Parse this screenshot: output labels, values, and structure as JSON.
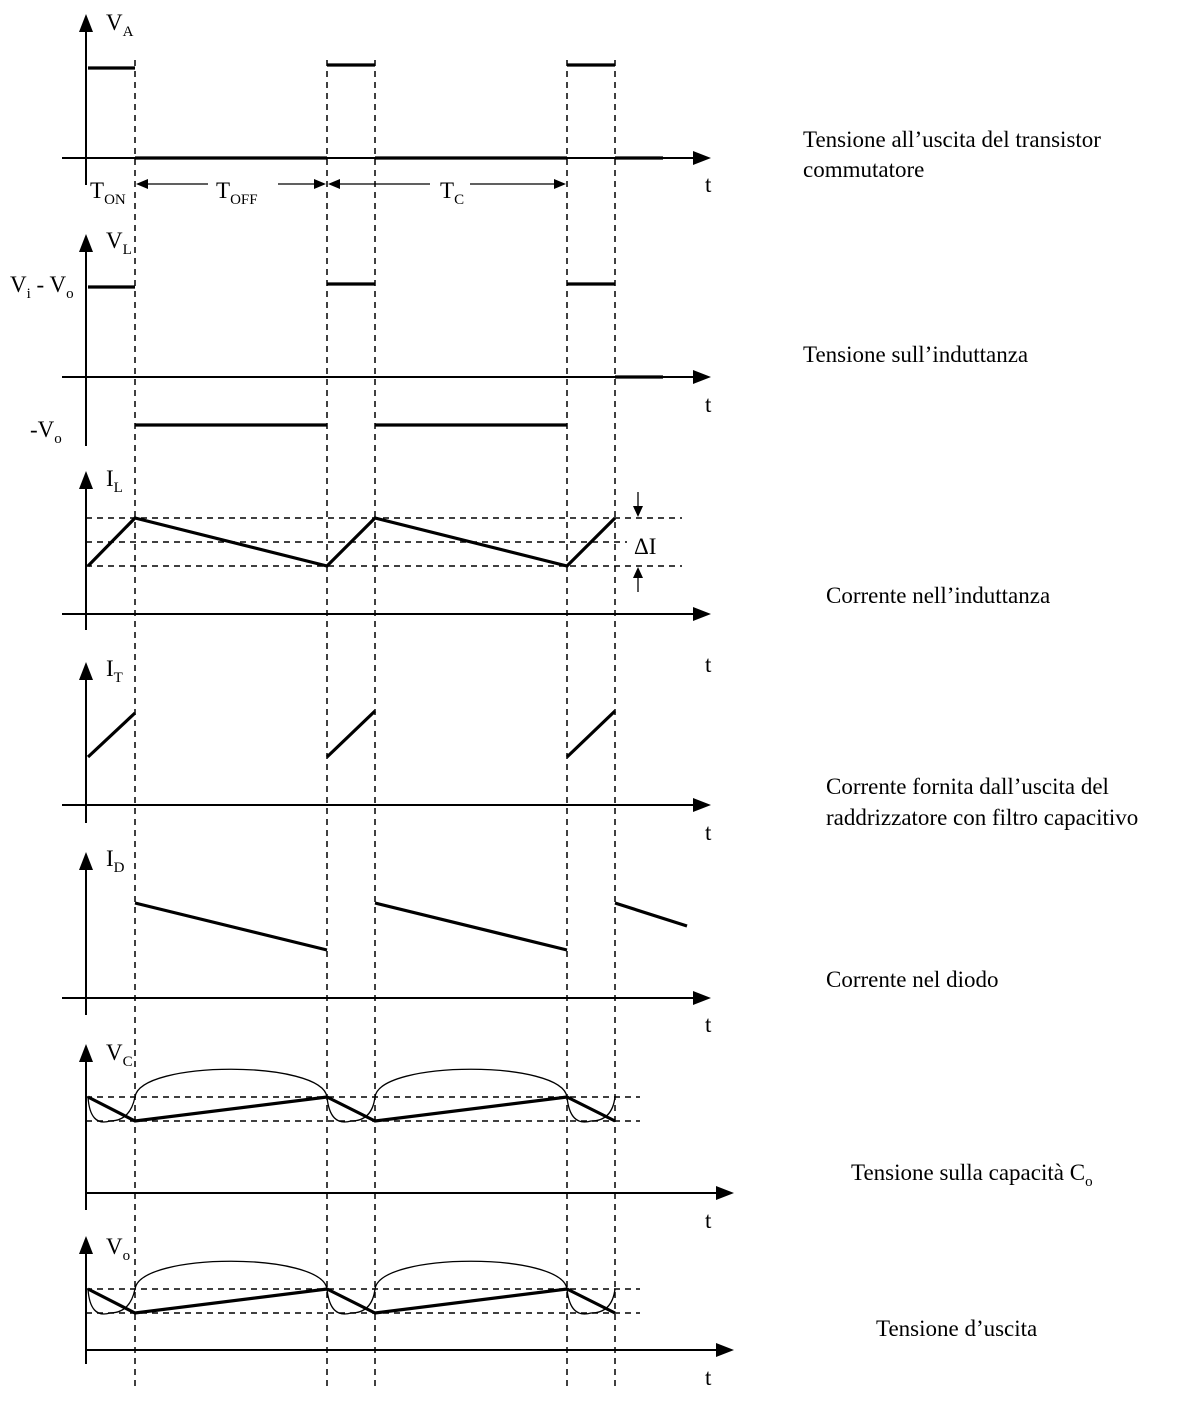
{
  "timing": {
    "t_on": "T",
    "t_on_sub": "ON",
    "t_off": "T",
    "t_off_sub": "OFF",
    "t_c": "T",
    "t_c_sub": "C"
  },
  "panels": {
    "va": {
      "y_label": "V",
      "y_sub": "A",
      "x_label": "t",
      "description": [
        "Tensione all’uscita del transistor",
        "commutatore"
      ]
    },
    "vl": {
      "y_label": "V",
      "y_sub": "L",
      "x_label": "t",
      "high_level": {
        "a": "V",
        "a_sub": "i",
        "mid": " - V",
        "b_sub": "o"
      },
      "low_level": {
        "a": "-V",
        "a_sub": "o"
      },
      "description": [
        "Tensione sull’induttanza"
      ]
    },
    "il": {
      "y_label": "I",
      "y_sub": "L",
      "x_label": "t",
      "ripple": "ΔI",
      "description": [
        "Corrente nell’induttanza"
      ]
    },
    "it": {
      "y_label": "I",
      "y_sub": "T",
      "x_label": "t",
      "description": [
        "Corrente fornita dall’uscita del",
        "raddrizzatore con filtro capacitivo"
      ]
    },
    "id": {
      "y_label": "I",
      "y_sub": "D",
      "x_label": "t",
      "description": [
        "Corrente nel diodo"
      ]
    },
    "vc": {
      "y_label": "V",
      "y_sub": "C",
      "x_label": "t",
      "description": {
        "text": "Tensione sulla capacità C",
        "sub": "o"
      }
    },
    "vo": {
      "y_label": "V",
      "y_sub": "o",
      "x_label": "t",
      "description": [
        "Tensione d’uscita"
      ]
    }
  }
}
